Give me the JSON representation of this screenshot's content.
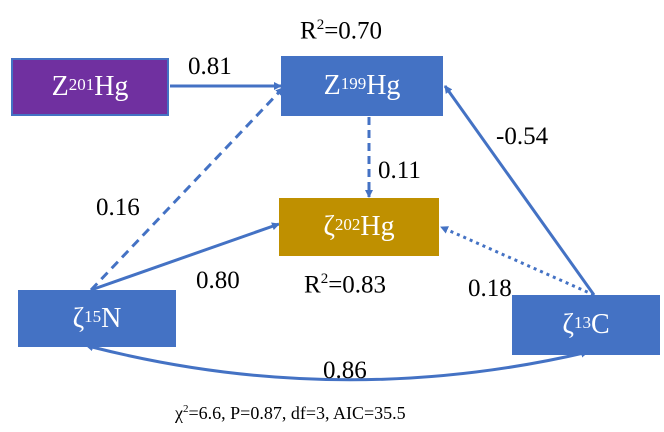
{
  "nodes": {
    "z201hg": {
      "symbol": "Z",
      "mass": "201",
      "element": "Hg",
      "color": "#7030a0"
    },
    "z199hg": {
      "symbol": "Z",
      "mass": "199",
      "element": "Hg",
      "color": "#4472c4"
    },
    "zeta202hg": {
      "symbol": "ζ",
      "mass": "202",
      "element": "Hg",
      "color": "#bf9000"
    },
    "zeta15n": {
      "symbol": "ζ",
      "mass": "15",
      "element": "N",
      "color": "#4472c4"
    },
    "zeta13c": {
      "symbol": "ζ",
      "mass": "13",
      "element": "C",
      "color": "#4472c4"
    }
  },
  "r_squared": {
    "z199hg": {
      "prefix": "R",
      "sup": "2",
      "value": "=0.70"
    },
    "zeta202hg": {
      "prefix": "R",
      "sup": "2",
      "value": "=0.83"
    }
  },
  "paths": {
    "z201_to_z199": "0.81",
    "c13_to_z199": "-0.54",
    "z199_to_zeta202": "0.11",
    "n15_to_z199": "0.16",
    "n15_to_zeta202": "0.80",
    "c13_to_zeta202": "0.18",
    "n15_c13_cov": "0.86"
  },
  "fit": {
    "chi": "χ",
    "chi_sup": "2",
    "chi_value": "=6.6,",
    "p": "P=0.87,",
    "df": "df=3,",
    "aic": "AIC=35.5"
  },
  "arrow_color": "#4472c4"
}
